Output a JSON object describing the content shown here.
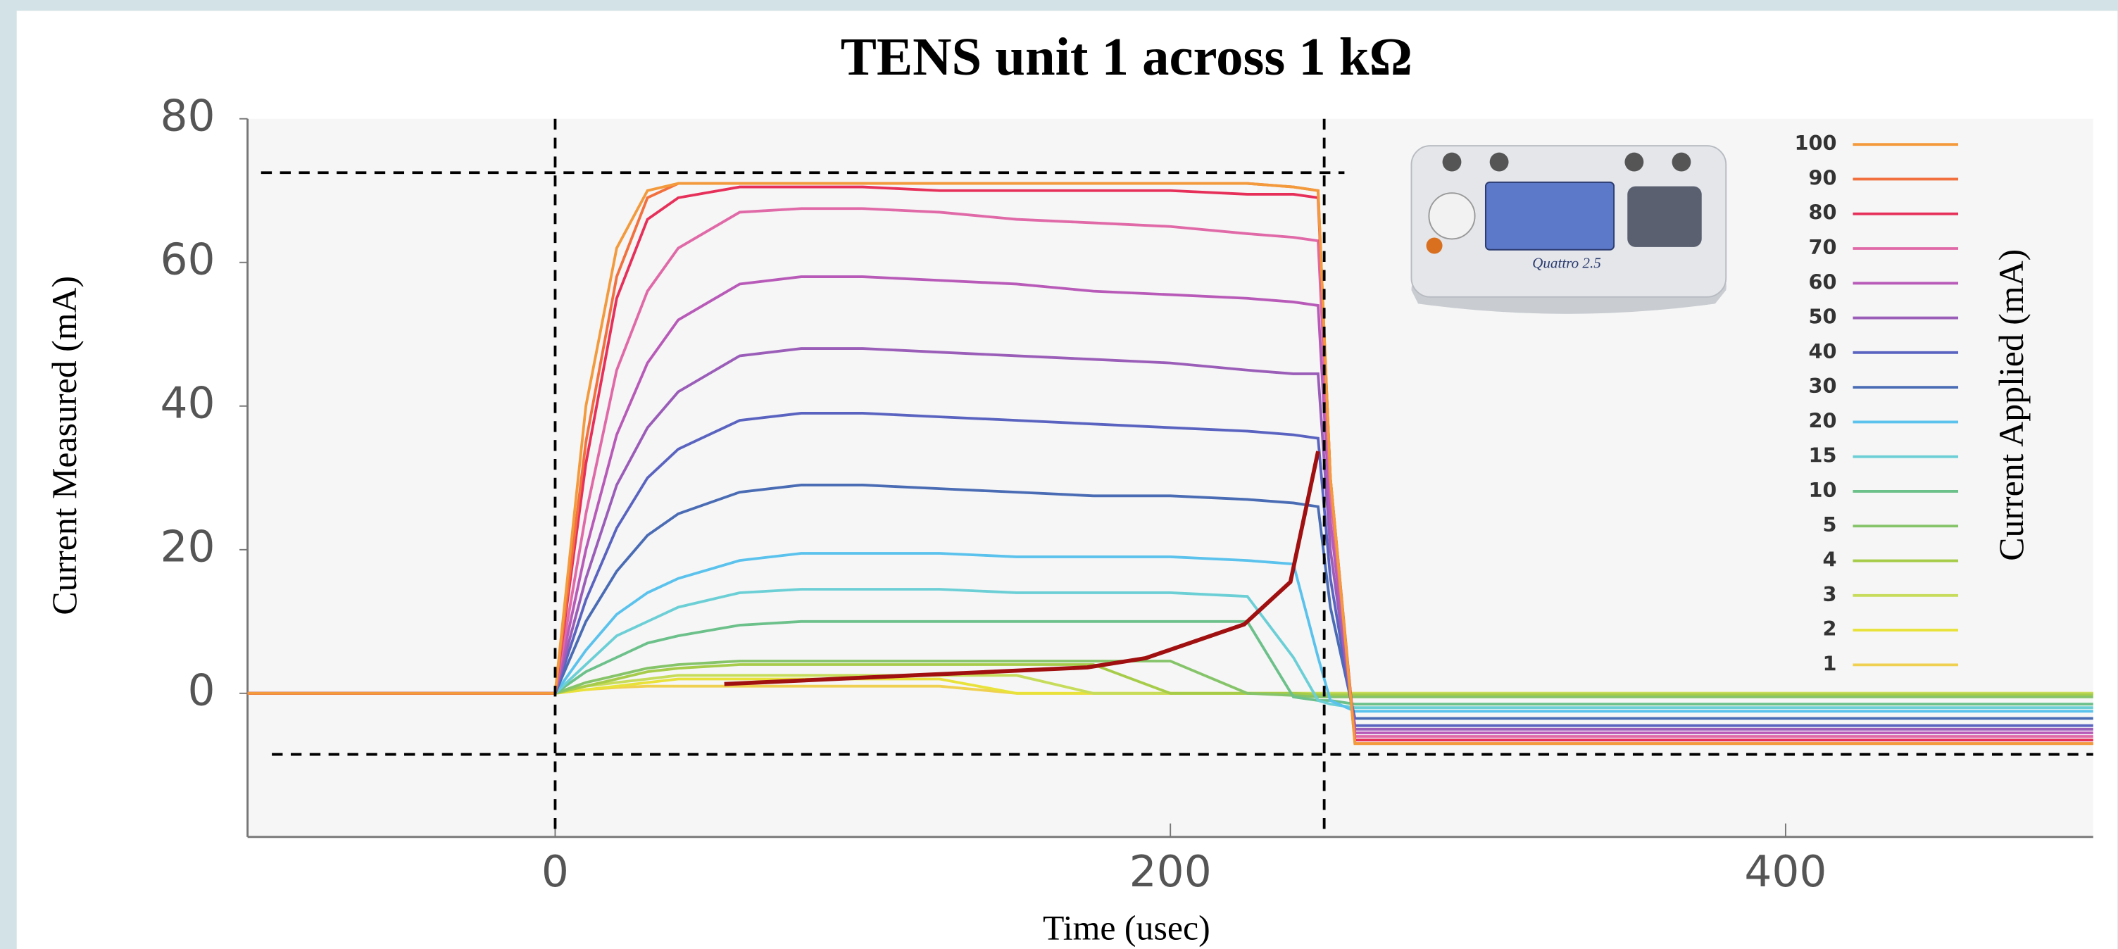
{
  "chart_data": {
    "type": "line",
    "title": "TENS unit 1 across 1 kΩ",
    "x_label": "Time (usec)",
    "y_label": "Current Measured (mA)",
    "legend_title": "Current Applied (mA)",
    "legend_position": "right",
    "device_label": "Quattro 2.5",
    "xlim": [
      -100,
      500
    ],
    "ylim": [
      -20,
      80
    ],
    "xticks": [
      0,
      200,
      400
    ],
    "yticks": [
      0,
      20,
      40,
      60,
      80
    ],
    "grid": false,
    "x": [
      -100,
      0,
      10,
      20,
      30,
      40,
      60,
      80,
      100,
      125,
      150,
      175,
      200,
      225,
      240,
      248,
      252,
      260,
      300,
      400,
      500
    ],
    "series": [
      {
        "name": "100",
        "color": "#f39a3c",
        "values": [
          0,
          0,
          40,
          62,
          70,
          71,
          71,
          71,
          71,
          71,
          71,
          71,
          71,
          71,
          70.5,
          70,
          30,
          -7,
          -7,
          -7,
          -7
        ]
      },
      {
        "name": "90",
        "color": "#f2703e",
        "values": [
          0,
          0,
          35,
          58,
          69,
          71,
          71,
          71,
          71,
          71,
          71,
          71,
          71,
          71,
          70.5,
          70,
          30,
          -7,
          -7,
          -7,
          -7
        ]
      },
      {
        "name": "80",
        "color": "#e6305a",
        "values": [
          0,
          0,
          32,
          55,
          66,
          69,
          70.5,
          70.5,
          70.5,
          70,
          70,
          70,
          70,
          69.5,
          69.5,
          69,
          30,
          -6.5,
          -6.5,
          -6.5,
          -6.5
        ]
      },
      {
        "name": "70",
        "color": "#e069a8",
        "values": [
          0,
          0,
          25,
          45,
          56,
          62,
          67,
          67.5,
          67.5,
          67,
          66,
          65.5,
          65,
          64,
          63.5,
          63,
          28,
          -6,
          -6,
          -6,
          -6
        ]
      },
      {
        "name": "60",
        "color": "#b85bb8",
        "values": [
          0,
          0,
          20,
          36,
          46,
          52,
          57,
          58,
          58,
          57.5,
          57,
          56,
          55.5,
          55,
          54.5,
          54,
          24,
          -5.5,
          -5.5,
          -5.5,
          -5.5
        ]
      },
      {
        "name": "50",
        "color": "#9a5db8",
        "values": [
          0,
          0,
          16,
          29,
          37,
          42,
          47,
          48,
          48,
          47.5,
          47,
          46.5,
          46,
          45,
          44.5,
          44.5,
          20,
          -5,
          -5,
          -5,
          -5
        ]
      },
      {
        "name": "40",
        "color": "#5a64c0",
        "values": [
          0,
          0,
          13,
          23,
          30,
          34,
          38,
          39,
          39,
          38.5,
          38,
          37.5,
          37,
          36.5,
          36,
          35.5,
          16,
          -4.5,
          -4.5,
          -4.5,
          -4.5
        ]
      },
      {
        "name": "30",
        "color": "#4a6cb4",
        "values": [
          0,
          0,
          10,
          17,
          22,
          25,
          28,
          29,
          29,
          28.5,
          28,
          27.5,
          27.5,
          27,
          26.5,
          26,
          12,
          -3.5,
          -3.5,
          -3.5,
          -3.5
        ]
      },
      {
        "name": "20",
        "color": "#5ac2ec",
        "values": [
          0,
          0,
          6,
          11,
          14,
          16,
          18.5,
          19.5,
          19.5,
          19.5,
          19,
          19,
          19,
          18.5,
          18,
          5,
          -1,
          -2.5,
          -2.5,
          -2.5,
          -2.5
        ]
      },
      {
        "name": "15",
        "color": "#6ccfd6",
        "values": [
          0,
          0,
          4,
          8,
          10,
          12,
          14,
          14.5,
          14.5,
          14.5,
          14,
          14,
          14,
          13.5,
          5,
          -1,
          -1.5,
          -2,
          -2,
          -2,
          -2
        ]
      },
      {
        "name": "10",
        "color": "#6cc08a",
        "values": [
          0,
          0,
          3,
          5,
          7,
          8,
          9.5,
          10,
          10,
          10,
          10,
          10,
          10,
          10,
          -0.5,
          -1,
          -1,
          -1.5,
          -1.5,
          -1.5,
          -1.5
        ]
      },
      {
        "name": "5",
        "color": "#86c46a",
        "values": [
          0,
          0,
          1.5,
          2.5,
          3.5,
          4,
          4.5,
          4.5,
          4.5,
          4.5,
          4.5,
          4.5,
          4.5,
          0,
          -0.3,
          -0.5,
          -0.5,
          -0.5,
          -0.5,
          -0.5,
          -0.5
        ]
      },
      {
        "name": "4",
        "color": "#a6cc4a",
        "values": [
          0,
          0,
          1,
          2,
          3,
          3.5,
          4,
          4,
          4,
          4,
          4,
          4,
          0,
          0,
          0,
          -0.2,
          -0.2,
          -0.2,
          -0.2,
          -0.2,
          -0.2
        ]
      },
      {
        "name": "3",
        "color": "#c6dc5a",
        "values": [
          0,
          0,
          1,
          1.5,
          2,
          2.5,
          2.5,
          2.5,
          2.5,
          2.5,
          2.5,
          0,
          0,
          0,
          0,
          0,
          0,
          0,
          0,
          0,
          0
        ]
      },
      {
        "name": "2",
        "color": "#e8e23a",
        "values": [
          0,
          0,
          0.5,
          1,
          1.5,
          2,
          2,
          2,
          2,
          2,
          0,
          0,
          0,
          0,
          0,
          0,
          0,
          0,
          0,
          0,
          0
        ]
      },
      {
        "name": "1",
        "color": "#f0d050",
        "values": [
          0,
          0,
          0.5,
          0.8,
          1,
          1,
          1,
          1,
          1,
          1,
          0,
          0,
          0,
          0,
          0,
          0,
          0,
          0,
          0,
          0,
          0
        ]
      }
    ],
    "reference_lines": {
      "x": [
        0,
        250
      ],
      "y": [
        72.5,
        -8.5
      ],
      "color": "#000000"
    },
    "annotation_line": {
      "color": "#a01010",
      "x": [
        55,
        173,
        192,
        224,
        239,
        248
      ],
      "y": [
        1.3,
        3.6,
        4.9,
        9.6,
        15.5,
        33.7
      ]
    }
  }
}
